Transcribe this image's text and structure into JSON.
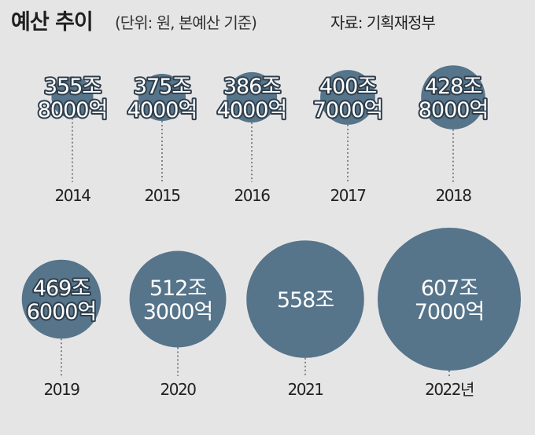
{
  "header": {
    "title": "예산 추이",
    "unit": "(단위: 원, 본예산 기준)",
    "source": "자료: 기획재정부"
  },
  "colors": {
    "background": "#e6e5e6",
    "bubble": "#56748a",
    "bubble_text": "#ffffff",
    "text": "#222222"
  },
  "chart_data": {
    "type": "bubble",
    "title": "예산 추이",
    "unit": "원",
    "points": [
      {
        "year": "2014",
        "value_label": [
          "355조",
          "8000억"
        ],
        "value_trillion": 355.8
      },
      {
        "year": "2015",
        "value_label": [
          "375조",
          "4000억"
        ],
        "value_trillion": 375.4
      },
      {
        "year": "2016",
        "value_label": [
          "386조",
          "4000억"
        ],
        "value_trillion": 386.4
      },
      {
        "year": "2017",
        "value_label": [
          "400조",
          "7000억"
        ],
        "value_trillion": 400.7
      },
      {
        "year": "2018",
        "value_label": [
          "428조",
          "8000억"
        ],
        "value_trillion": 428.8
      },
      {
        "year": "2019",
        "value_label": [
          "469조",
          "6000억"
        ],
        "value_trillion": 469.6
      },
      {
        "year": "2020",
        "value_label": [
          "512조",
          "3000억"
        ],
        "value_trillion": 512.3
      },
      {
        "year": "2021",
        "value_label": [
          "558조"
        ],
        "value_trillion": 558.0
      },
      {
        "year": "2022년",
        "value_label": [
          "607조",
          "7000억"
        ],
        "value_trillion": 607.7
      }
    ]
  }
}
